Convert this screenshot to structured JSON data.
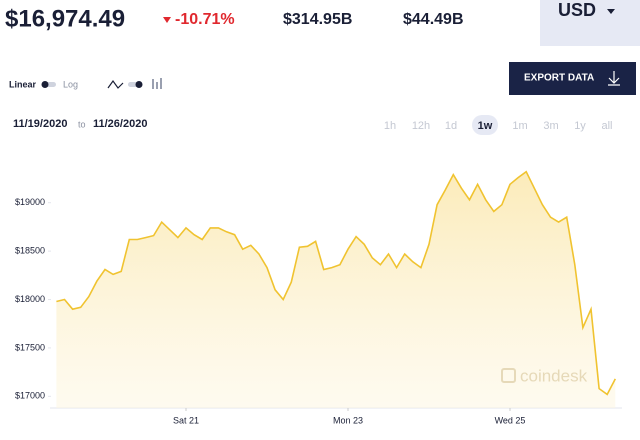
{
  "header": {
    "price": "$16,974.49",
    "change": "-10.71%",
    "market_cap": "$314.95B",
    "volume": "$44.49B",
    "currency": "USD"
  },
  "controls": {
    "scale_linear": "Linear",
    "scale_log": "Log",
    "export": "EXPORT DATA",
    "date_from": "11/19/2020",
    "date_sep": "to",
    "date_to": "11/26/2020",
    "ranges": [
      "1h",
      "12h",
      "1d",
      "1w",
      "1m",
      "3m",
      "1y",
      "all"
    ],
    "selected_range": "1w"
  },
  "chart_data": {
    "type": "line",
    "color": "#f0c330",
    "grid": false,
    "watermark": "coindesk",
    "categories": [
      null,
      null,
      null,
      null,
      null,
      null,
      null,
      null,
      null,
      null,
      null,
      null,
      null,
      null,
      null,
      null,
      "Sat 21",
      null,
      null,
      null,
      null,
      null,
      null,
      null,
      null,
      null,
      null,
      null,
      null,
      null,
      null,
      null,
      null,
      null,
      null,
      null,
      "Mon 23",
      null,
      null,
      null,
      null,
      null,
      null,
      null,
      null,
      null,
      null,
      null,
      null,
      null,
      null,
      null,
      null,
      null,
      null,
      null,
      "Wed 25",
      null,
      null,
      null,
      null,
      null,
      null,
      null,
      null,
      null,
      null,
      null,
      null,
      null
    ],
    "values": [
      17980,
      18000,
      17900,
      17920,
      18030,
      18190,
      18310,
      18260,
      18290,
      18620,
      18620,
      18640,
      18660,
      18800,
      18720,
      18640,
      18740,
      18670,
      18620,
      18740,
      18740,
      18700,
      18670,
      18520,
      18560,
      18470,
      18330,
      18100,
      18000,
      18180,
      18540,
      18550,
      18600,
      18310,
      18330,
      18360,
      18520,
      18650,
      18570,
      18430,
      18360,
      18470,
      18330,
      18470,
      18390,
      18330,
      18570,
      18980,
      19130,
      19290,
      19150,
      19030,
      19190,
      19030,
      18910,
      18980,
      19190,
      19260,
      19320,
      19150,
      18980,
      18850,
      18800,
      18850,
      18360,
      17710,
      17900,
      17080,
      17020,
      17180
    ],
    "ylim": [
      16900,
      19400
    ],
    "yticks": [
      {
        "value": 17000,
        "label": "$17000"
      },
      {
        "value": 17500,
        "label": "$17500"
      },
      {
        "value": 18000,
        "label": "$18000"
      },
      {
        "value": 18500,
        "label": "$18500"
      },
      {
        "value": 19000,
        "label": "$19000"
      }
    ]
  }
}
